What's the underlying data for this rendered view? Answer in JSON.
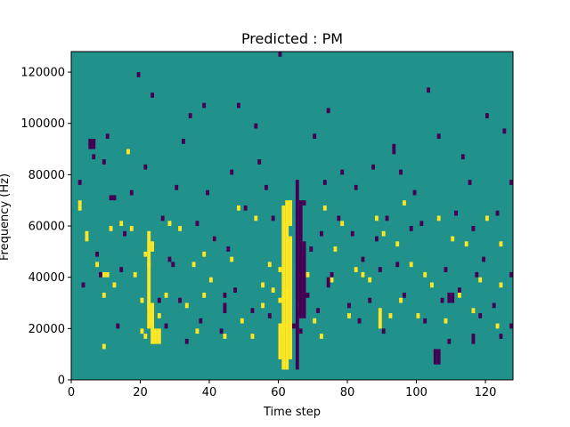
{
  "chart_data": {
    "type": "heatmap",
    "title": "Predicted : PM",
    "xlabel": "Time step",
    "ylabel": "Frequency (Hz)",
    "xlim": [
      0,
      128
    ],
    "ylim": [
      0,
      128000
    ],
    "xticks": [
      0,
      20,
      40,
      60,
      80,
      100,
      120
    ],
    "yticks": [
      0,
      20000,
      40000,
      60000,
      80000,
      100000,
      120000
    ],
    "xtick_labels": [
      "0",
      "20",
      "40",
      "60",
      "80",
      "100",
      "120"
    ],
    "ytick_labels": [
      "0",
      "20000",
      "40000",
      "60000",
      "80000",
      "100000",
      "120000"
    ],
    "time_bins": 128,
    "freq_bins": 64,
    "freq_bin_width_hz": 2000,
    "colormap": {
      "background": "#21918c",
      "low": "#440154",
      "high": "#fde725"
    },
    "background_value": 0,
    "high_cells": [
      [
        2,
        33
      ],
      [
        2,
        34
      ],
      [
        4,
        27
      ],
      [
        4,
        28
      ],
      [
        7,
        22
      ],
      [
        9,
        6
      ],
      [
        9,
        16
      ],
      [
        9,
        20
      ],
      [
        10,
        20
      ],
      [
        11,
        29
      ],
      [
        12,
        18
      ],
      [
        14,
        30
      ],
      [
        16,
        44
      ],
      [
        17,
        29
      ],
      [
        18,
        20
      ],
      [
        20,
        15
      ],
      [
        20,
        9
      ],
      [
        21,
        8
      ],
      [
        21,
        24
      ],
      [
        22,
        14
      ],
      [
        22,
        22
      ],
      [
        22,
        28
      ],
      [
        23,
        11
      ],
      [
        23,
        25
      ],
      [
        23,
        26
      ],
      [
        25,
        12
      ],
      [
        27,
        16
      ],
      [
        28,
        30
      ],
      [
        31,
        29
      ],
      [
        33,
        14
      ],
      [
        35,
        22
      ],
      [
        36,
        9
      ],
      [
        38,
        16
      ],
      [
        38,
        24
      ],
      [
        40,
        19
      ],
      [
        41,
        27
      ],
      [
        44,
        8
      ],
      [
        46,
        23
      ],
      [
        48,
        33
      ],
      [
        49,
        11
      ],
      [
        52,
        8
      ],
      [
        53,
        31
      ],
      [
        55,
        14
      ],
      [
        55,
        18
      ],
      [
        57,
        22
      ],
      [
        58,
        17
      ],
      [
        60,
        15
      ],
      [
        60,
        10
      ],
      [
        60,
        21
      ],
      [
        61,
        10
      ],
      [
        61,
        16
      ],
      [
        62,
        17
      ],
      [
        63,
        34
      ],
      [
        66,
        14
      ],
      [
        68,
        20
      ],
      [
        70,
        11
      ],
      [
        72,
        8
      ],
      [
        73,
        33
      ],
      [
        75,
        19
      ],
      [
        76,
        25
      ],
      [
        78,
        30
      ],
      [
        80,
        12
      ],
      [
        82,
        21
      ],
      [
        84,
        20
      ],
      [
        86,
        19
      ],
      [
        88,
        31
      ],
      [
        90,
        28
      ],
      [
        92,
        12
      ],
      [
        94,
        26
      ],
      [
        95,
        15
      ],
      [
        96,
        34
      ],
      [
        98,
        22
      ],
      [
        100,
        12
      ],
      [
        102,
        20
      ],
      [
        104,
        18
      ],
      [
        106,
        31
      ],
      [
        108,
        11
      ],
      [
        110,
        27
      ],
      [
        112,
        16
      ],
      [
        114,
        26
      ],
      [
        116,
        13
      ],
      [
        118,
        19
      ],
      [
        120,
        31
      ],
      [
        123,
        10
      ],
      [
        124,
        18
      ],
      [
        124,
        26
      ]
    ],
    "high_runs": [
      {
        "x": 22,
        "y0": 20000,
        "y1": 56000
      },
      {
        "x": 23,
        "y0": 14000,
        "y1": 30000
      },
      {
        "x": 24,
        "y0": 14000,
        "y1": 20000
      },
      {
        "x": 25,
        "y0": 14000,
        "y1": 20000
      },
      {
        "x": 61,
        "y0": 4000,
        "y1": 68000
      },
      {
        "x": 62,
        "y0": 4000,
        "y1": 70000
      },
      {
        "x": 63,
        "y0": 8000,
        "y1": 56000
      },
      {
        "x": 60,
        "y0": 8000,
        "y1": 22000
      },
      {
        "x": 63,
        "y0": 60000,
        "y1": 70000
      },
      {
        "x": 89,
        "y0": 20000,
        "y1": 28000
      }
    ],
    "low_cells": [
      [
        3,
        18
      ],
      [
        5,
        45
      ],
      [
        6,
        43
      ],
      [
        5,
        46
      ],
      [
        6,
        46
      ],
      [
        7,
        24
      ],
      [
        9,
        42
      ],
      [
        10,
        47
      ],
      [
        12,
        35
      ],
      [
        13,
        10
      ],
      [
        15,
        28
      ],
      [
        17,
        36
      ],
      [
        19,
        59
      ],
      [
        21,
        41
      ],
      [
        23,
        55
      ],
      [
        25,
        15
      ],
      [
        27,
        10
      ],
      [
        28,
        23
      ],
      [
        30,
        37
      ],
      [
        31,
        15
      ],
      [
        32,
        46
      ],
      [
        33,
        7
      ],
      [
        34,
        51
      ],
      [
        36,
        30
      ],
      [
        37,
        11
      ],
      [
        38,
        53
      ],
      [
        39,
        36
      ],
      [
        41,
        27
      ],
      [
        43,
        9
      ],
      [
        44,
        16
      ],
      [
        46,
        40
      ],
      [
        47,
        17
      ],
      [
        48,
        53
      ],
      [
        50,
        33
      ],
      [
        52,
        13
      ],
      [
        53,
        49
      ],
      [
        56,
        37
      ],
      [
        58,
        31
      ],
      [
        60,
        63
      ],
      [
        64,
        10
      ],
      [
        65,
        32
      ],
      [
        65,
        20
      ],
      [
        65,
        28
      ],
      [
        66,
        21
      ],
      [
        66,
        9
      ],
      [
        67,
        34
      ],
      [
        68,
        16
      ],
      [
        69,
        25
      ],
      [
        70,
        47
      ],
      [
        71,
        13
      ],
      [
        72,
        28
      ],
      [
        74,
        52
      ],
      [
        75,
        20
      ],
      [
        77,
        31
      ],
      [
        78,
        40
      ],
      [
        80,
        14
      ],
      [
        81,
        28
      ],
      [
        82,
        37
      ],
      [
        83,
        11
      ],
      [
        84,
        23
      ],
      [
        86,
        15
      ],
      [
        87,
        41
      ],
      [
        88,
        27
      ],
      [
        89,
        21
      ],
      [
        90,
        9
      ],
      [
        91,
        31
      ],
      [
        93,
        44
      ],
      [
        93,
        45
      ],
      [
        94,
        22
      ],
      [
        95,
        40
      ],
      [
        96,
        16
      ],
      [
        98,
        29
      ],
      [
        99,
        36
      ],
      [
        101,
        30
      ],
      [
        102,
        11
      ],
      [
        103,
        56
      ],
      [
        105,
        5
      ],
      [
        106,
        47
      ],
      [
        107,
        15
      ],
      [
        108,
        21
      ],
      [
        109,
        7
      ],
      [
        111,
        32
      ],
      [
        112,
        17
      ],
      [
        113,
        43
      ],
      [
        115,
        38
      ],
      [
        116,
        29
      ],
      [
        117,
        20
      ],
      [
        118,
        12
      ],
      [
        119,
        23
      ],
      [
        120,
        51
      ],
      [
        122,
        14
      ],
      [
        123,
        32
      ],
      [
        124,
        8
      ],
      [
        125,
        48
      ],
      [
        127,
        38
      ],
      [
        127,
        20
      ],
      [
        127,
        10
      ],
      [
        2,
        38
      ],
      [
        8,
        20
      ],
      [
        11,
        35
      ],
      [
        14,
        21
      ],
      [
        26,
        31
      ],
      [
        29,
        22
      ],
      [
        45,
        25
      ],
      [
        54,
        42
      ],
      [
        57,
        12
      ],
      [
        73,
        38
      ]
    ],
    "low_runs": [
      {
        "x": 65,
        "y0": 4000,
        "y1": 78000
      },
      {
        "x": 66,
        "y0": 24000,
        "y1": 70000
      },
      {
        "x": 67,
        "y0": 24000,
        "y1": 54000
      },
      {
        "x": 5,
        "y0": 90000,
        "y1": 94000
      },
      {
        "x": 6,
        "y0": 90000,
        "y1": 94000
      },
      {
        "x": 44,
        "y0": 26000,
        "y1": 30000
      },
      {
        "x": 74,
        "y0": 36000,
        "y1": 40000
      },
      {
        "x": 105,
        "y0": 6000,
        "y1": 12000
      },
      {
        "x": 106,
        "y0": 6000,
        "y1": 12000
      },
      {
        "x": 109,
        "y0": 30000,
        "y1": 34000
      },
      {
        "x": 110,
        "y0": 30000,
        "y1": 34000
      },
      {
        "x": 116,
        "y0": 14000,
        "y1": 18000
      }
    ]
  }
}
